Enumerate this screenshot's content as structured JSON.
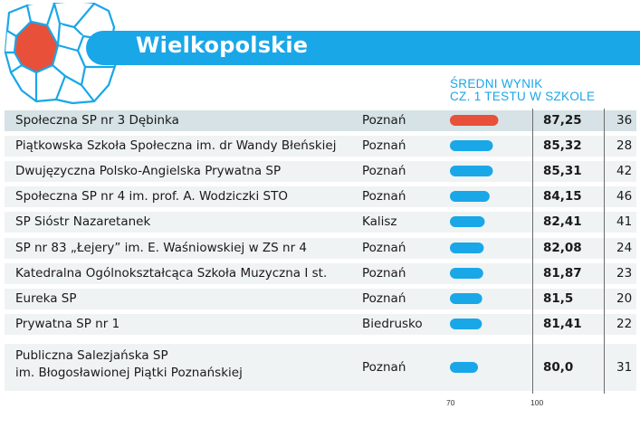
{
  "region_title": "Wielkopolskie",
  "column_header": {
    "line1": "ŚREDNI WYNIK",
    "line2": "CZ. 1 TESTU W SZKOLE"
  },
  "colors": {
    "accent": "#1aa7e8",
    "highlight": "#e8503a",
    "map_outline": "#1aa7e8"
  },
  "chart_data": {
    "type": "bar",
    "orientation": "horizontal",
    "title": "Wielkopolskie",
    "ylabel": "ŚREDNI WYNIK CZ. 1 TESTU W SZKOLE",
    "xlim": [
      70,
      100
    ],
    "x_ticks": [
      "70",
      "100"
    ],
    "categories": [
      "Społeczna SP nr 3 Dębinka",
      "Piątkowska Szkoła Społeczna im. dr Wandy Błeńskiej",
      "Dwujęzyczna Polsko-Angielska Prywatna SP",
      "Społeczna SP nr 4 im. prof. A. Wodziczki STO",
      "SP Sióstr Nazaretanek",
      "SP nr 83 „Łejery” im. E. Waśniowskiej w ZS nr 4",
      "Katedralna Ogólnokształcąca Szkoła Muzyczna I st.",
      "Eureka SP",
      "Prywatna SP nr 1",
      "Publiczna Salezjańska SP im. Błogosławionej Piątki Poznańskiej"
    ],
    "values": [
      87.25,
      85.32,
      85.31,
      84.15,
      82.41,
      82.08,
      81.87,
      81.5,
      81.41,
      80.0
    ],
    "grid": false
  },
  "rows": [
    {
      "name": "Społeczna SP nr 3 Dębinka",
      "city": "Poznań",
      "score": "87,25",
      "rank": "36",
      "highlight": true
    },
    {
      "name": "Piątkowska Szkoła Społeczna im. dr Wandy Błeńskiej",
      "city": "Poznań",
      "score": "85,32",
      "rank": "28"
    },
    {
      "name": "Dwujęzyczna Polsko-Angielska Prywatna SP",
      "city": "Poznań",
      "score": "85,31",
      "rank": "42"
    },
    {
      "name": "Społeczna SP nr 4 im. prof. A. Wodziczki STO",
      "city": "Poznań",
      "score": "84,15",
      "rank": "46"
    },
    {
      "name": "SP Sióstr Nazaretanek",
      "city": "Kalisz",
      "score": "82,41",
      "rank": "41"
    },
    {
      "name": "SP nr 83 „Łejery” im. E. Waśniowskiej w ZS nr 4",
      "city": "Poznań",
      "score": "82,08",
      "rank": "24"
    },
    {
      "name": "Katedralna Ogólnokształcąca Szkoła Muzyczna I st.",
      "city": "Poznań",
      "score": "81,87",
      "rank": "23"
    },
    {
      "name": "Eureka SP",
      "city": "Poznań",
      "score": "81,5",
      "rank": "20"
    },
    {
      "name": "Prywatna SP nr 1",
      "city": "Biedrusko",
      "score": "81,41",
      "rank": "22"
    },
    {
      "name_line1": "Publiczna Salezjańska SP",
      "name_line2": "im. Błogosławionej Piątki Poznańskiej",
      "city": "Poznań",
      "score": "80,0",
      "rank": "31"
    }
  ]
}
